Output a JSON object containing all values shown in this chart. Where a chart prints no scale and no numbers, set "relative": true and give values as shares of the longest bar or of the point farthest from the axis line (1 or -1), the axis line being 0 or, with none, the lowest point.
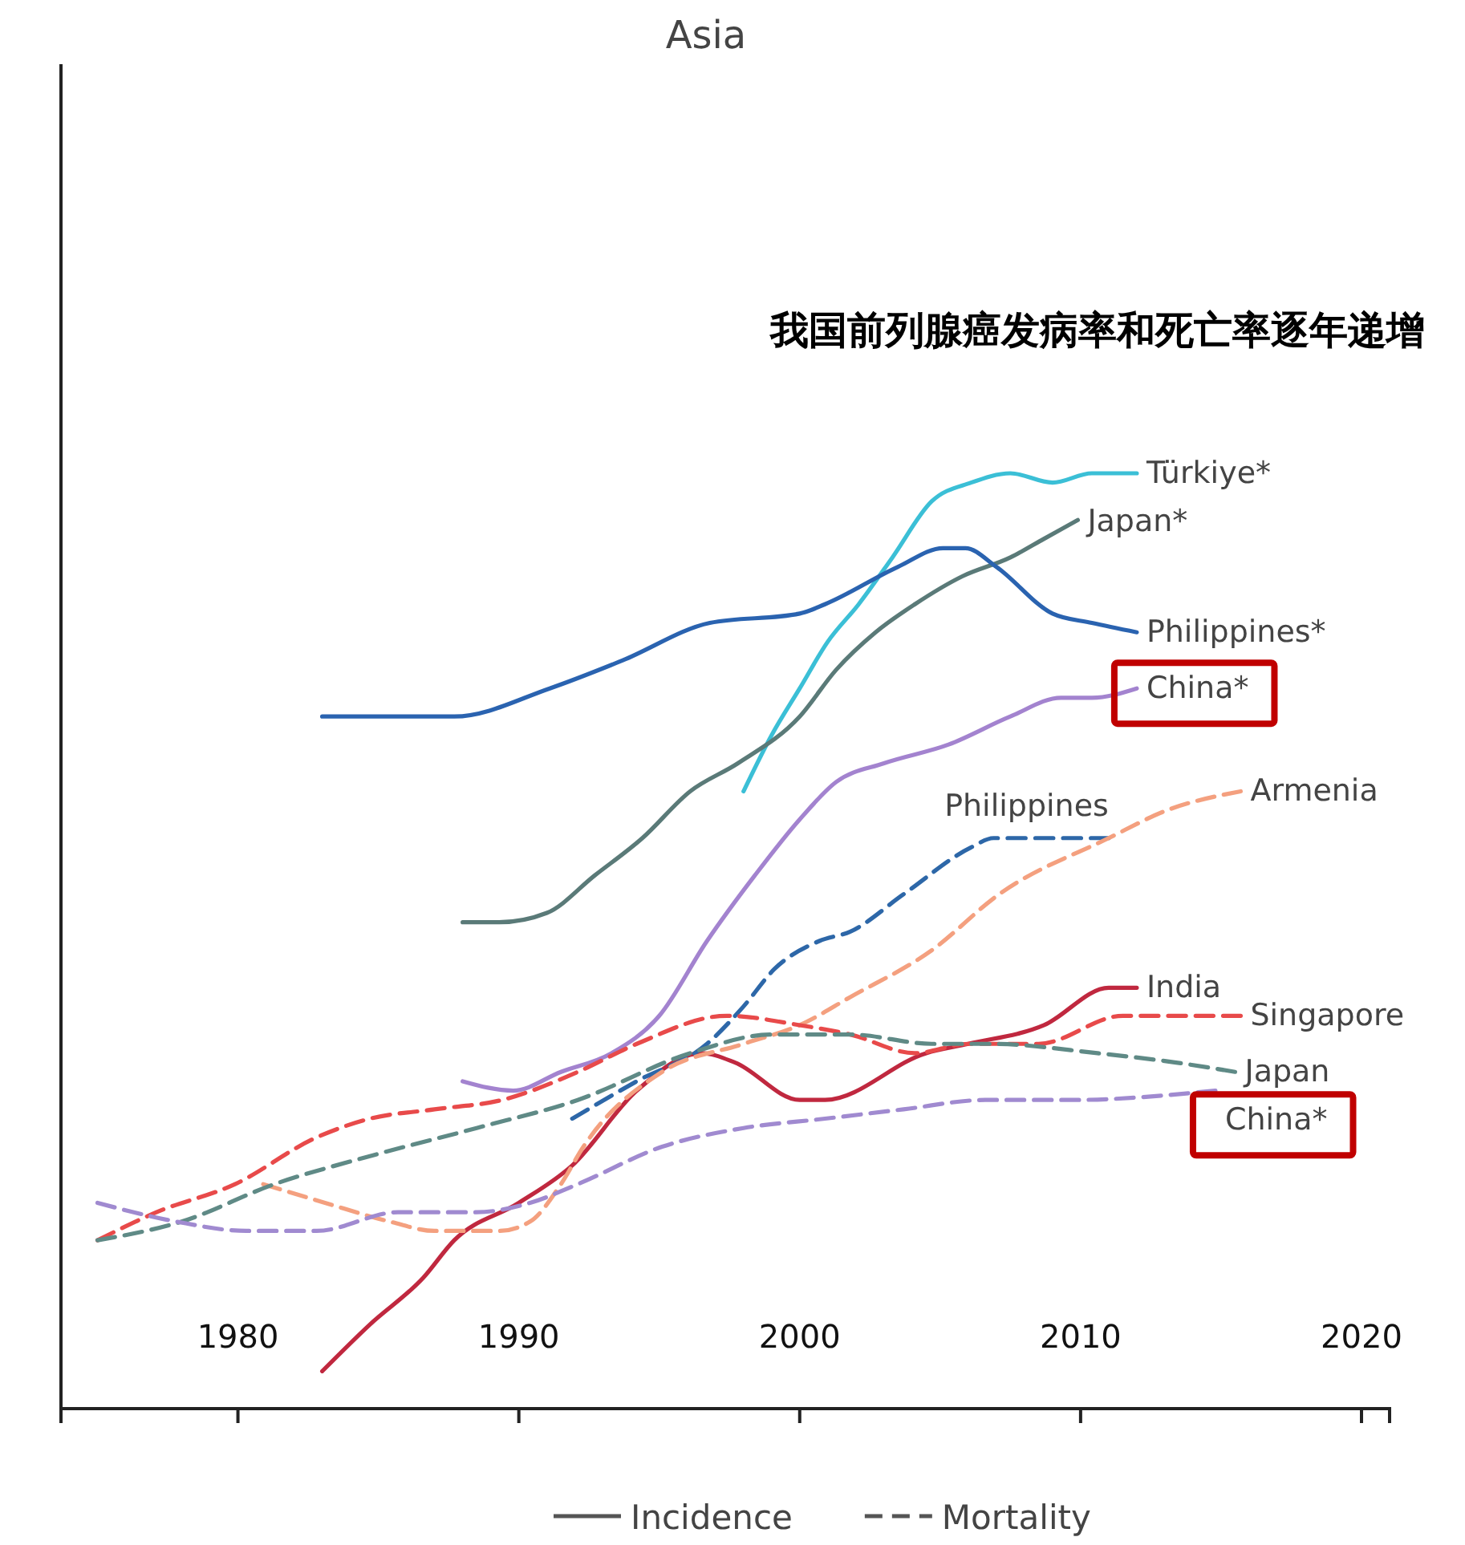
{
  "chart_data": {
    "type": "line",
    "title": "Asia",
    "relative": true,
    "xlim": [
      1973.7,
      2021
    ],
    "xticks": [
      1980,
      1990,
      2000,
      2010,
      2020
    ],
    "annotations": [
      "我国前列腺癌发病率和死亡率逐年递增",
      "Incidence",
      "Mortality"
    ],
    "series": [
      {
        "name": "Türkiye*",
        "color": "#3bbfd6",
        "line_style": "solid",
        "x": [
          1998.0,
          1999.0,
          2000.0,
          2001.0,
          2002.1,
          2003.3,
          2004.7,
          2006.1,
          2007.5,
          2009.0,
          2010.4,
          2012.0
        ],
        "values": [
          0.66,
          0.72,
          0.77,
          0.82,
          0.86,
          0.91,
          0.97,
          0.99,
          1.0,
          0.99,
          1.0,
          1.0
        ]
      },
      {
        "name": "Japan*",
        "color": "#5a7a78",
        "line_style": "solid",
        "x": [
          1988.0,
          1989.3,
          1991.0,
          1992.7,
          1994.4,
          1996.1,
          1997.8,
          2000.0,
          2001.3,
          2002.7,
          2004.1,
          2005.8,
          2007.5,
          2008.7,
          2009.9
        ],
        "values": [
          0.52,
          0.52,
          0.53,
          0.57,
          0.61,
          0.66,
          0.69,
          0.74,
          0.79,
          0.83,
          0.86,
          0.89,
          0.91,
          0.93,
          0.95
        ]
      },
      {
        "name": "Philippines*",
        "color": "#2a63b0",
        "line_style": "solid",
        "x": [
          1983.0,
          1987.7,
          1991.1,
          1993.7,
          1996.8,
          2000.0,
          2000.9,
          2003.5,
          2005.1,
          2005.9,
          2007.0,
          2009.0,
          2010.4,
          2012.0
        ],
        "values": [
          0.74,
          0.74,
          0.77,
          0.8,
          0.84,
          0.85,
          0.86,
          0.9,
          0.92,
          0.92,
          0.9,
          0.85,
          0.84,
          0.83
        ]
      },
      {
        "name": "China*",
        "color": "#a383cf",
        "line_style": "solid",
        "x": [
          1988.0,
          1989.8,
          1991.5,
          1993.3,
          1995.0,
          1996.7,
          1998.4,
          2000.0,
          2001.3,
          2003.0,
          2005.3,
          2007.5,
          2009.3,
          2010.4,
          2012.0
        ],
        "values": [
          0.35,
          0.34,
          0.36,
          0.38,
          0.42,
          0.5,
          0.57,
          0.63,
          0.67,
          0.69,
          0.71,
          0.74,
          0.76,
          0.76,
          0.77
        ]
      },
      {
        "name": "India",
        "color": "#c0283f",
        "line_style": "solid",
        "x": [
          1983.0,
          1984.7,
          1986.6,
          1987.7,
          1990.0,
          1991.9,
          1994.2,
          1996.5,
          1997.7,
          2000.0,
          2000.9,
          2004.5,
          2006.0,
          2008.7,
          2011.0,
          2012.0
        ],
        "values": [
          0.04,
          0.09,
          0.14,
          0.18,
          0.22,
          0.26,
          0.34,
          0.38,
          0.37,
          0.33,
          0.33,
          0.38,
          0.39,
          0.41,
          0.45,
          0.45
        ]
      },
      {
        "name": "Philippines",
        "color": "#2d67a8",
        "line_style": "dashed",
        "x": [
          1991.9,
          1994.2,
          1996.7,
          1998.0,
          1999.1,
          2000.7,
          2001.8,
          2003.7,
          2006.1,
          2006.9,
          2011.0
        ],
        "values": [
          0.31,
          0.35,
          0.39,
          0.43,
          0.47,
          0.5,
          0.51,
          0.55,
          0.6,
          0.61,
          0.61
        ]
      },
      {
        "name": "Armenia",
        "color": "#f4a07f",
        "line_style": "dashed",
        "x": [
          1980.9,
          1983.1,
          1985.4,
          1987.0,
          1989.3,
          1990.4,
          1991.5,
          1992.3,
          1995.1,
          1998.0,
          2000.0,
          2001.8,
          2004.7,
          2007.1,
          2011.0,
          2013.1,
          2015.7
        ],
        "values": [
          0.24,
          0.22,
          0.2,
          0.19,
          0.19,
          0.2,
          0.24,
          0.28,
          0.36,
          0.39,
          0.41,
          0.44,
          0.49,
          0.55,
          0.61,
          0.64,
          0.66
        ]
      },
      {
        "name": "Singapore",
        "color": "#e84a4a",
        "line_style": "dashed",
        "x": [
          1975.0,
          1977.1,
          1979.9,
          1982.8,
          1984.7,
          1987.0,
          1989.4,
          1992.1,
          1994.2,
          1997.4,
          2000.0,
          2001.8,
          2004.1,
          2006.0,
          2008.5,
          2011.5,
          2015.7
        ],
        "values": [
          0.18,
          0.21,
          0.24,
          0.29,
          0.31,
          0.32,
          0.33,
          0.36,
          0.39,
          0.42,
          0.41,
          0.4,
          0.38,
          0.39,
          0.39,
          0.42,
          0.42
        ]
      },
      {
        "name": "Japan",
        "color": "#5f8a86",
        "line_style": "dashed",
        "x": [
          1975.0,
          1978.0,
          1981.3,
          1984.7,
          1988.5,
          1992.1,
          1996.1,
          1999.0,
          2001.8,
          2004.7,
          2006.8,
          2010.6,
          2013.4,
          2015.5
        ],
        "values": [
          0.18,
          0.2,
          0.24,
          0.27,
          0.3,
          0.33,
          0.38,
          0.4,
          0.4,
          0.39,
          0.39,
          0.38,
          0.37,
          0.36
        ]
      },
      {
        "name": "China*",
        "color": "#a08ad0",
        "line_style": "dashed",
        "x": [
          1975.0,
          1977.8,
          1980.3,
          1982.8,
          1985.7,
          1988.5,
          1990.4,
          1992.1,
          1995.1,
          1998.0,
          2000.9,
          2003.7,
          2006.6,
          2009.7,
          2014.8
        ],
        "values": [
          0.22,
          0.2,
          0.19,
          0.19,
          0.21,
          0.21,
          0.22,
          0.24,
          0.28,
          0.3,
          0.31,
          0.32,
          0.33,
          0.33,
          0.34
        ]
      }
    ]
  }
}
